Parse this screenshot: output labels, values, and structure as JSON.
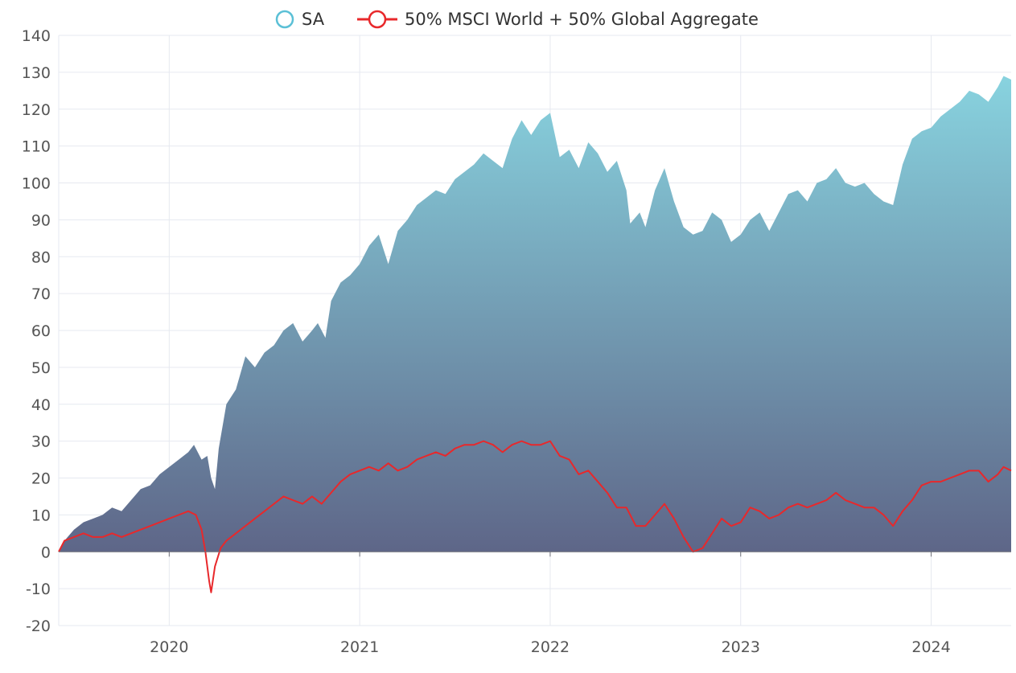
{
  "chart_data": {
    "type": "area",
    "title": "",
    "xlabel": "",
    "ylabel": "",
    "legend_position": "top-center",
    "grid": true,
    "ylim": [
      -20,
      140
    ],
    "yticks": [
      -20,
      -10,
      0,
      10,
      20,
      30,
      40,
      50,
      60,
      70,
      80,
      90,
      100,
      110,
      120,
      130,
      140
    ],
    "xlim": [
      2019.42,
      2024.42
    ],
    "xticks": [
      2020,
      2021,
      2022,
      2023,
      2024
    ],
    "series": [
      {
        "name": "SA",
        "type": "area",
        "color": "#5bc0d6",
        "fill_top": "#88d3df",
        "fill_bottom": "#5e6688",
        "points": [
          [
            2019.42,
            0
          ],
          [
            2019.45,
            3
          ],
          [
            2019.5,
            6
          ],
          [
            2019.55,
            8
          ],
          [
            2019.6,
            9
          ],
          [
            2019.65,
            10
          ],
          [
            2019.7,
            12
          ],
          [
            2019.75,
            11
          ],
          [
            2019.8,
            14
          ],
          [
            2019.85,
            17
          ],
          [
            2019.9,
            18
          ],
          [
            2019.95,
            21
          ],
          [
            2020.0,
            23
          ],
          [
            2020.05,
            25
          ],
          [
            2020.1,
            27
          ],
          [
            2020.13,
            29
          ],
          [
            2020.17,
            25
          ],
          [
            2020.2,
            26
          ],
          [
            2020.22,
            20
          ],
          [
            2020.24,
            17
          ],
          [
            2020.26,
            28
          ],
          [
            2020.28,
            34
          ],
          [
            2020.3,
            40
          ],
          [
            2020.35,
            44
          ],
          [
            2020.4,
            53
          ],
          [
            2020.45,
            50
          ],
          [
            2020.5,
            54
          ],
          [
            2020.55,
            56
          ],
          [
            2020.6,
            60
          ],
          [
            2020.65,
            62
          ],
          [
            2020.7,
            57
          ],
          [
            2020.75,
            60
          ],
          [
            2020.78,
            62
          ],
          [
            2020.82,
            58
          ],
          [
            2020.85,
            68
          ],
          [
            2020.9,
            73
          ],
          [
            2020.95,
            75
          ],
          [
            2021.0,
            78
          ],
          [
            2021.05,
            83
          ],
          [
            2021.1,
            86
          ],
          [
            2021.15,
            78
          ],
          [
            2021.2,
            87
          ],
          [
            2021.25,
            90
          ],
          [
            2021.3,
            94
          ],
          [
            2021.35,
            96
          ],
          [
            2021.4,
            98
          ],
          [
            2021.45,
            97
          ],
          [
            2021.5,
            101
          ],
          [
            2021.55,
            103
          ],
          [
            2021.6,
            105
          ],
          [
            2021.65,
            108
          ],
          [
            2021.7,
            106
          ],
          [
            2021.75,
            104
          ],
          [
            2021.8,
            112
          ],
          [
            2021.85,
            117
          ],
          [
            2021.9,
            113
          ],
          [
            2021.95,
            117
          ],
          [
            2022.0,
            119
          ],
          [
            2022.05,
            107
          ],
          [
            2022.1,
            109
          ],
          [
            2022.15,
            104
          ],
          [
            2022.2,
            111
          ],
          [
            2022.25,
            108
          ],
          [
            2022.3,
            103
          ],
          [
            2022.35,
            106
          ],
          [
            2022.4,
            98
          ],
          [
            2022.42,
            89
          ],
          [
            2022.47,
            92
          ],
          [
            2022.5,
            88
          ],
          [
            2022.55,
            98
          ],
          [
            2022.6,
            104
          ],
          [
            2022.65,
            95
          ],
          [
            2022.7,
            88
          ],
          [
            2022.75,
            86
          ],
          [
            2022.8,
            87
          ],
          [
            2022.85,
            92
          ],
          [
            2022.9,
            90
          ],
          [
            2022.95,
            84
          ],
          [
            2023.0,
            86
          ],
          [
            2023.05,
            90
          ],
          [
            2023.1,
            92
          ],
          [
            2023.15,
            87
          ],
          [
            2023.2,
            92
          ],
          [
            2023.25,
            97
          ],
          [
            2023.3,
            98
          ],
          [
            2023.35,
            95
          ],
          [
            2023.4,
            100
          ],
          [
            2023.45,
            101
          ],
          [
            2023.5,
            104
          ],
          [
            2023.55,
            100
          ],
          [
            2023.6,
            99
          ],
          [
            2023.65,
            100
          ],
          [
            2023.7,
            97
          ],
          [
            2023.75,
            95
          ],
          [
            2023.8,
            94
          ],
          [
            2023.85,
            105
          ],
          [
            2023.9,
            112
          ],
          [
            2023.95,
            114
          ],
          [
            2024.0,
            115
          ],
          [
            2024.05,
            118
          ],
          [
            2024.1,
            120
          ],
          [
            2024.15,
            122
          ],
          [
            2024.2,
            125
          ],
          [
            2024.25,
            124
          ],
          [
            2024.3,
            122
          ],
          [
            2024.35,
            126
          ],
          [
            2024.38,
            129
          ],
          [
            2024.42,
            128
          ]
        ]
      },
      {
        "name": "50% MSCI World + 50% Global Aggregate",
        "type": "line",
        "color": "#e8282b",
        "points": [
          [
            2019.42,
            0
          ],
          [
            2019.45,
            3
          ],
          [
            2019.5,
            4
          ],
          [
            2019.55,
            5
          ],
          [
            2019.6,
            4
          ],
          [
            2019.65,
            4
          ],
          [
            2019.7,
            5
          ],
          [
            2019.75,
            4
          ],
          [
            2019.8,
            5
          ],
          [
            2019.85,
            6
          ],
          [
            2019.9,
            7
          ],
          [
            2019.95,
            8
          ],
          [
            2020.0,
            9
          ],
          [
            2020.05,
            10
          ],
          [
            2020.1,
            11
          ],
          [
            2020.14,
            10
          ],
          [
            2020.17,
            6
          ],
          [
            2020.19,
            0
          ],
          [
            2020.21,
            -8
          ],
          [
            2020.22,
            -11
          ],
          [
            2020.24,
            -4
          ],
          [
            2020.27,
            1
          ],
          [
            2020.3,
            3
          ],
          [
            2020.35,
            5
          ],
          [
            2020.4,
            7
          ],
          [
            2020.45,
            9
          ],
          [
            2020.5,
            11
          ],
          [
            2020.55,
            13
          ],
          [
            2020.6,
            15
          ],
          [
            2020.65,
            14
          ],
          [
            2020.7,
            13
          ],
          [
            2020.75,
            15
          ],
          [
            2020.8,
            13
          ],
          [
            2020.85,
            16
          ],
          [
            2020.9,
            19
          ],
          [
            2020.95,
            21
          ],
          [
            2021.0,
            22
          ],
          [
            2021.05,
            23
          ],
          [
            2021.1,
            22
          ],
          [
            2021.15,
            24
          ],
          [
            2021.2,
            22
          ],
          [
            2021.25,
            23
          ],
          [
            2021.3,
            25
          ],
          [
            2021.35,
            26
          ],
          [
            2021.4,
            27
          ],
          [
            2021.45,
            26
          ],
          [
            2021.5,
            28
          ],
          [
            2021.55,
            29
          ],
          [
            2021.6,
            29
          ],
          [
            2021.65,
            30
          ],
          [
            2021.7,
            29
          ],
          [
            2021.75,
            27
          ],
          [
            2021.8,
            29
          ],
          [
            2021.85,
            30
          ],
          [
            2021.9,
            29
          ],
          [
            2021.95,
            29
          ],
          [
            2022.0,
            30
          ],
          [
            2022.05,
            26
          ],
          [
            2022.1,
            25
          ],
          [
            2022.15,
            21
          ],
          [
            2022.2,
            22
          ],
          [
            2022.25,
            19
          ],
          [
            2022.3,
            16
          ],
          [
            2022.35,
            12
          ],
          [
            2022.4,
            12
          ],
          [
            2022.45,
            7
          ],
          [
            2022.5,
            7
          ],
          [
            2022.55,
            10
          ],
          [
            2022.6,
            13
          ],
          [
            2022.65,
            9
          ],
          [
            2022.7,
            4
          ],
          [
            2022.75,
            0
          ],
          [
            2022.8,
            1
          ],
          [
            2022.85,
            5
          ],
          [
            2022.9,
            9
          ],
          [
            2022.95,
            7
          ],
          [
            2023.0,
            8
          ],
          [
            2023.05,
            12
          ],
          [
            2023.1,
            11
          ],
          [
            2023.15,
            9
          ],
          [
            2023.2,
            10
          ],
          [
            2023.25,
            12
          ],
          [
            2023.3,
            13
          ],
          [
            2023.35,
            12
          ],
          [
            2023.4,
            13
          ],
          [
            2023.45,
            14
          ],
          [
            2023.5,
            16
          ],
          [
            2023.55,
            14
          ],
          [
            2023.6,
            13
          ],
          [
            2023.65,
            12
          ],
          [
            2023.7,
            12
          ],
          [
            2023.75,
            10
          ],
          [
            2023.8,
            7
          ],
          [
            2023.85,
            11
          ],
          [
            2023.9,
            14
          ],
          [
            2023.95,
            18
          ],
          [
            2024.0,
            19
          ],
          [
            2024.05,
            19
          ],
          [
            2024.1,
            20
          ],
          [
            2024.15,
            21
          ],
          [
            2024.2,
            22
          ],
          [
            2024.25,
            22
          ],
          [
            2024.3,
            19
          ],
          [
            2024.35,
            21
          ],
          [
            2024.38,
            23
          ],
          [
            2024.42,
            22
          ]
        ]
      }
    ]
  }
}
